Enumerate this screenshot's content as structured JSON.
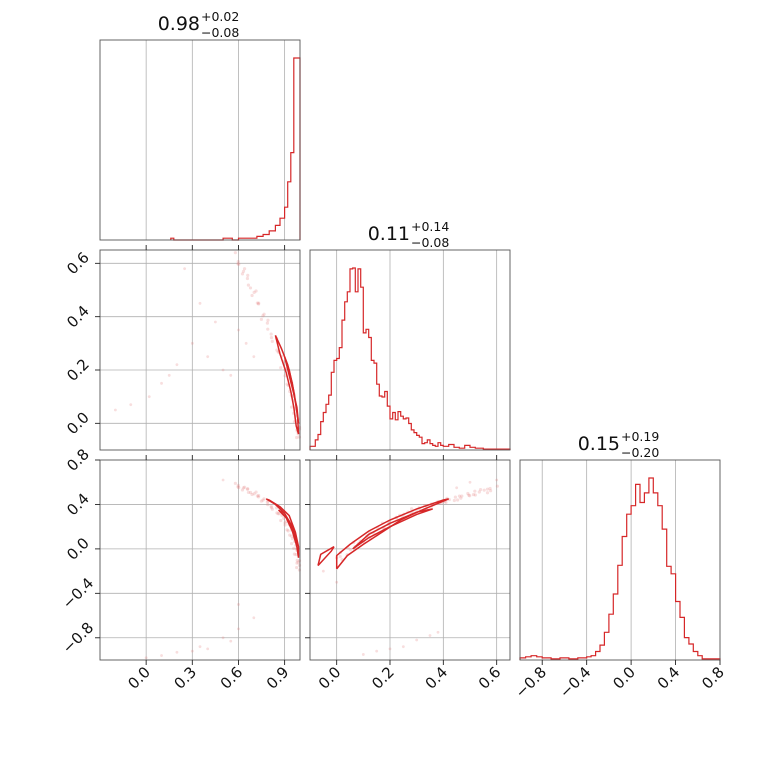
{
  "chart_data": {
    "type": "corner",
    "colors": {
      "series": "#d62728",
      "grid": "#b0b0b0",
      "frame": "#555555"
    },
    "parameters": [
      {
        "title": {
          "value": "0.98",
          "plus": "+0.02",
          "minus": "−0.08"
        },
        "range": [
          -0.3,
          1.0
        ],
        "ticks": [
          0.0,
          0.3,
          0.6,
          0.9
        ],
        "tick_labels": [
          "0.0",
          "0.3",
          "0.6",
          "0.9"
        ]
      },
      {
        "title": {
          "value": "0.11",
          "plus": "+0.14",
          "minus": "−0.08"
        },
        "range": [
          -0.1,
          0.65
        ],
        "ticks": [
          0.0,
          0.2,
          0.4,
          0.6
        ],
        "tick_labels": [
          "0.0",
          "0.2",
          "0.4",
          "0.6"
        ]
      },
      {
        "title": {
          "value": "0.15",
          "plus": "+0.19",
          "minus": "−0.20"
        },
        "range": [
          -1.0,
          0.8
        ],
        "ticks": [
          -0.8,
          -0.4,
          0.0,
          0.4,
          0.8
        ],
        "tick_labels": [
          "−0.8",
          "−0.4",
          "0.0",
          "0.4",
          "0.8"
        ]
      }
    ],
    "histograms": [
      {
        "edges": [
          0.16,
          0.18,
          0.5,
          0.56,
          0.6,
          0.64,
          0.68,
          0.72,
          0.76,
          0.8,
          0.84,
          0.87,
          0.9,
          0.92,
          0.94,
          0.96,
          0.98,
          1.0
        ],
        "counts": [
          1,
          0,
          1,
          0,
          1,
          1,
          1,
          2,
          3,
          5,
          8,
          12,
          18,
          32,
          48,
          100,
          100
        ]
      },
      {
        "edges": [
          -0.1,
          -0.08,
          -0.07,
          -0.06,
          -0.05,
          -0.04,
          -0.03,
          -0.02,
          -0.01,
          0.0,
          0.01,
          0.02,
          0.03,
          0.04,
          0.05,
          0.06,
          0.07,
          0.08,
          0.09,
          0.1,
          0.11,
          0.12,
          0.13,
          0.14,
          0.15,
          0.16,
          0.17,
          0.18,
          0.19,
          0.2,
          0.21,
          0.22,
          0.23,
          0.24,
          0.25,
          0.26,
          0.27,
          0.28,
          0.29,
          0.3,
          0.31,
          0.32,
          0.33,
          0.34,
          0.35,
          0.36,
          0.37,
          0.38,
          0.39,
          0.4,
          0.42,
          0.44,
          0.46,
          0.48,
          0.5,
          0.52,
          0.55,
          0.58,
          0.6,
          0.62,
          0.65
        ],
        "counts": [
          4,
          11,
          17,
          31,
          41,
          50,
          60,
          85,
          98,
          100,
          112,
          142,
          162,
          173,
          198,
          199,
          173,
          198,
          178,
          128,
          132,
          123,
          98,
          95,
          72,
          59,
          58,
          64,
          48,
          34,
          41,
          33,
          42,
          37,
          34,
          35,
          29,
          22,
          19,
          16,
          14,
          7,
          8,
          11,
          7,
          5,
          4,
          8,
          5,
          4,
          6,
          3,
          2,
          5,
          3,
          2,
          1,
          1,
          1,
          1
        ]
      },
      {
        "edges": [
          -1.0,
          -0.95,
          -0.9,
          -0.85,
          -0.8,
          -0.72,
          -0.64,
          -0.56,
          -0.48,
          -0.4,
          -0.36,
          -0.32,
          -0.28,
          -0.24,
          -0.2,
          -0.16,
          -0.12,
          -0.08,
          -0.04,
          0.0,
          0.04,
          0.08,
          0.12,
          0.16,
          0.2,
          0.24,
          0.28,
          0.32,
          0.36,
          0.4,
          0.44,
          0.48,
          0.52,
          0.56,
          0.6,
          0.64,
          0.68,
          0.72,
          0.76,
          0.8
        ],
        "counts": [
          2,
          3,
          4,
          3,
          2,
          1,
          2,
          1,
          2,
          3,
          4,
          8,
          14,
          26,
          43,
          62,
          89,
          116,
          137,
          145,
          165,
          148,
          157,
          171,
          157,
          145,
          123,
          88,
          81,
          55,
          40,
          21,
          15,
          8,
          4,
          1,
          1,
          1,
          1
        ]
      }
    ],
    "pair_curves": [
      {
        "x_param": 0,
        "y_param": 1,
        "points": [
          [
            0.58,
            0.62
          ],
          [
            0.64,
            0.56
          ],
          [
            0.7,
            0.49
          ],
          [
            0.76,
            0.41
          ],
          [
            0.82,
            0.33
          ],
          [
            0.88,
            0.24
          ],
          [
            0.92,
            0.17
          ],
          [
            0.95,
            0.1
          ],
          [
            0.97,
            0.04
          ],
          [
            0.985,
            -0.02
          ],
          [
            0.99,
            -0.05
          ]
        ],
        "contours": [
          [
            [
              0.84,
              0.33
            ],
            [
              0.88,
              0.28
            ],
            [
              0.92,
              0.22
            ],
            [
              0.95,
              0.15
            ],
            [
              0.97,
              0.08
            ],
            [
              0.985,
              0.02
            ],
            [
              0.99,
              -0.04
            ],
            [
              0.975,
              -0.01
            ],
            [
              0.96,
              0.06
            ],
            [
              0.94,
              0.12
            ],
            [
              0.91,
              0.19
            ],
            [
              0.87,
              0.26
            ],
            [
              0.84,
              0.33
            ]
          ],
          [
            [
              0.9,
              0.25
            ],
            [
              0.93,
              0.2
            ],
            [
              0.96,
              0.12
            ],
            [
              0.98,
              0.05
            ],
            [
              0.99,
              0.0
            ],
            [
              0.98,
              0.06
            ],
            [
              0.96,
              0.11
            ],
            [
              0.93,
              0.18
            ],
            [
              0.9,
              0.25
            ]
          ]
        ],
        "outliers": [
          [
            0.1,
            0.15
          ],
          [
            0.2,
            0.22
          ],
          [
            0.3,
            0.3
          ],
          [
            0.02,
            0.1
          ],
          [
            -0.1,
            0.07
          ],
          [
            0.4,
            0.25
          ],
          [
            0.5,
            0.2
          ],
          [
            0.45,
            0.38
          ],
          [
            0.55,
            0.18
          ],
          [
            0.6,
            0.35
          ],
          [
            0.35,
            0.45
          ],
          [
            0.25,
            0.58
          ],
          [
            0.65,
            0.3
          ],
          [
            0.7,
            0.25
          ],
          [
            0.15,
            0.18
          ],
          [
            -0.2,
            0.05
          ]
        ]
      },
      {
        "x_param": 0,
        "y_param": 2,
        "points": [
          [
            0.58,
            0.57
          ],
          [
            0.64,
            0.54
          ],
          [
            0.7,
            0.5
          ],
          [
            0.76,
            0.45
          ],
          [
            0.82,
            0.38
          ],
          [
            0.88,
            0.29
          ],
          [
            0.92,
            0.2
          ],
          [
            0.95,
            0.1
          ],
          [
            0.97,
            0.0
          ],
          [
            0.985,
            -0.1
          ],
          [
            0.99,
            -0.2
          ]
        ],
        "contours": [
          [
            [
              0.78,
              0.45
            ],
            [
              0.84,
              0.4
            ],
            [
              0.9,
              0.32
            ],
            [
              0.95,
              0.2
            ],
            [
              0.975,
              0.06
            ],
            [
              0.99,
              -0.08
            ],
            [
              0.99,
              0.02
            ],
            [
              0.97,
              0.15
            ],
            [
              0.93,
              0.3
            ],
            [
              0.87,
              0.38
            ],
            [
              0.8,
              0.44
            ],
            [
              0.78,
              0.45
            ]
          ],
          [
            [
              0.86,
              0.35
            ],
            [
              0.91,
              0.28
            ],
            [
              0.95,
              0.16
            ],
            [
              0.98,
              0.02
            ],
            [
              0.97,
              0.12
            ],
            [
              0.93,
              0.25
            ],
            [
              0.88,
              0.33
            ],
            [
              0.86,
              0.35
            ]
          ]
        ],
        "outliers": [
          [
            0.0,
            -0.98
          ],
          [
            0.2,
            -0.93
          ],
          [
            0.35,
            -0.88
          ],
          [
            0.5,
            -0.8
          ],
          [
            0.6,
            -0.72
          ],
          [
            0.7,
            -0.62
          ],
          [
            0.5,
            0.62
          ],
          [
            0.6,
            -0.5
          ],
          [
            0.4,
            -0.9
          ],
          [
            0.1,
            -0.96
          ],
          [
            0.3,
            -0.92
          ],
          [
            0.55,
            -0.83
          ]
        ]
      },
      {
        "x_param": 1,
        "y_param": 2,
        "points": [
          [
            0.0,
            -0.1
          ],
          [
            0.05,
            0.0
          ],
          [
            0.1,
            0.08
          ],
          [
            0.15,
            0.16
          ],
          [
            0.2,
            0.24
          ],
          [
            0.25,
            0.3
          ],
          [
            0.3,
            0.35
          ],
          [
            0.35,
            0.39
          ],
          [
            0.4,
            0.43
          ],
          [
            0.45,
            0.46
          ],
          [
            0.5,
            0.49
          ],
          [
            0.55,
            0.52
          ],
          [
            0.6,
            0.55
          ]
        ],
        "contours": [
          [
            [
              0.0,
              -0.18
            ],
            [
              0.04,
              -0.06
            ],
            [
              0.1,
              0.04
            ],
            [
              0.17,
              0.15
            ],
            [
              0.24,
              0.26
            ],
            [
              0.32,
              0.35
            ],
            [
              0.42,
              0.45
            ],
            [
              0.4,
              0.44
            ],
            [
              0.3,
              0.36
            ],
            [
              0.2,
              0.26
            ],
            [
              0.12,
              0.16
            ],
            [
              0.05,
              0.04
            ],
            [
              0.0,
              -0.06
            ],
            [
              0.0,
              -0.18
            ]
          ],
          [
            [
              0.06,
              0.0
            ],
            [
              0.12,
              0.1
            ],
            [
              0.2,
              0.2
            ],
            [
              0.3,
              0.31
            ],
            [
              0.36,
              0.36
            ],
            [
              0.3,
              0.33
            ],
            [
              0.2,
              0.23
            ],
            [
              0.12,
              0.13
            ],
            [
              0.06,
              0.0
            ]
          ],
          [
            [
              -0.07,
              -0.15
            ],
            [
              -0.02,
              -0.02
            ],
            [
              -0.01,
              0.02
            ],
            [
              -0.06,
              -0.05
            ],
            [
              -0.07,
              -0.15
            ]
          ]
        ],
        "outliers": [
          [
            0.1,
            -0.95
          ],
          [
            0.2,
            -0.9
          ],
          [
            0.3,
            -0.82
          ],
          [
            0.35,
            -0.78
          ],
          [
            0.25,
            -0.88
          ],
          [
            0.15,
            -0.92
          ],
          [
            0.38,
            -0.75
          ],
          [
            0.5,
            0.6
          ],
          [
            0.45,
            0.55
          ],
          [
            -0.05,
            -0.2
          ],
          [
            0.0,
            -0.3
          ],
          [
            0.6,
            0.62
          ]
        ]
      }
    ]
  }
}
